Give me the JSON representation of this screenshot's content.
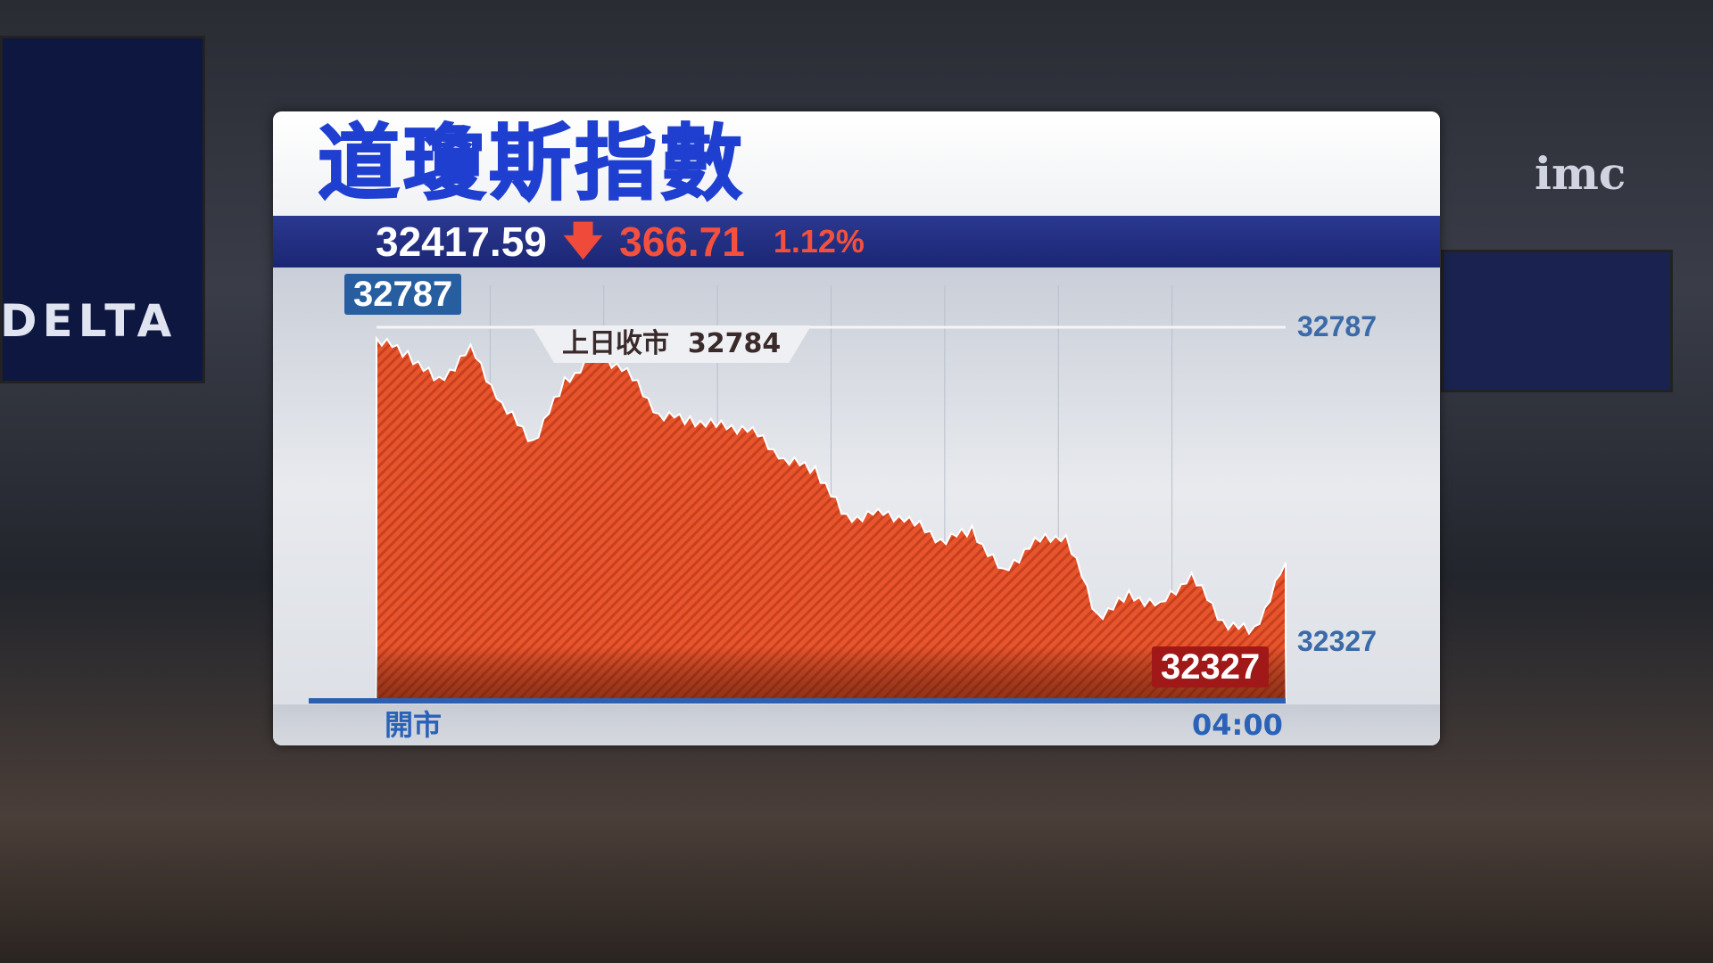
{
  "background": {
    "screen_labels": [
      "DELTA",
      "imc"
    ]
  },
  "header": {
    "title": "道瓊斯指數"
  },
  "quote": {
    "price": "32417.59",
    "direction_icon": "arrow-down-icon",
    "arrow": "🡇",
    "change": "366.71",
    "percent": "1.12%",
    "down_color": "#f3503e"
  },
  "chart_data": {
    "type": "area",
    "x_labels": {
      "start": "開市",
      "end": "04:00"
    },
    "open_label": "32787",
    "high_label": "32787",
    "low_label": "32327",
    "low_axis_label": "32327",
    "prev_close": {
      "label": "上日收市",
      "value": "32784"
    },
    "ylim": [
      32327,
      32787
    ],
    "values": [
      32770,
      32746,
      32704,
      32754,
      32671,
      32613,
      32704,
      32746,
      32721,
      32655,
      32646,
      32638,
      32630,
      32588,
      32572,
      32497,
      32505,
      32497,
      32464,
      32480,
      32414,
      32464,
      32472,
      32348,
      32381,
      32365,
      32414,
      32340,
      32327,
      32431
    ],
    "fill_color": "#e8552c"
  }
}
